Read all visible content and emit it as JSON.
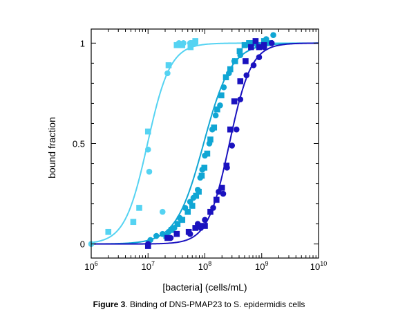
{
  "caption": {
    "label": "Figure 3",
    "text": ". Binding of DNS-PMAP23 to S. epidermidis cells"
  },
  "chart_data": {
    "type": "scatter",
    "xlabel": "[bacteria] (cells/mL)",
    "ylabel": "bound fraction",
    "xscale": "log",
    "xlim": [
      1000000,
      10000000000
    ],
    "ylim": [
      -0.07,
      1.07
    ],
    "xticks": [
      {
        "base": "10",
        "exp": "6"
      },
      {
        "base": "10",
        "exp": "7"
      },
      {
        "base": "10",
        "exp": "8"
      },
      {
        "base": "10",
        "exp": "9"
      },
      {
        "base": "10",
        "exp": "10"
      }
    ],
    "yticks": [
      "0",
      "0.5",
      "1"
    ],
    "ytick_values": [
      0,
      0.5,
      1
    ],
    "grid": false,
    "legend": "none",
    "series": [
      {
        "color": "#55d3f2",
        "fit_midpoint": 9800000,
        "fit_slope": 5.0,
        "circles": [
          [
            1000000,
            0.0
          ],
          [
            10000000,
            0.47
          ],
          [
            10500000,
            0.36
          ],
          [
            18000000,
            0.16
          ],
          [
            22000000,
            0.85
          ],
          [
            35000000,
            1.0
          ],
          [
            42000000,
            1.0
          ],
          [
            55000000,
            1.0
          ],
          [
            68000000,
            1.0
          ]
        ],
        "squares": [
          [
            2000000,
            0.06
          ],
          [
            5500000,
            0.11
          ],
          [
            7000000,
            0.18
          ],
          [
            10000000,
            0.56
          ],
          [
            23000000,
            0.89
          ],
          [
            32000000,
            0.99
          ],
          [
            40000000,
            0.99
          ],
          [
            56000000,
            0.98
          ],
          [
            62000000,
            1.0
          ],
          [
            68000000,
            1.01
          ]
        ]
      },
      {
        "color": "#10a6d4",
        "fit_midpoint": 95000000,
        "fit_slope": 4.1,
        "circles": [
          [
            11000000,
            0.02
          ],
          [
            14000000,
            0.04
          ],
          [
            18000000,
            0.05
          ],
          [
            23000000,
            0.06
          ],
          [
            29000000,
            0.08
          ],
          [
            36000000,
            0.13
          ],
          [
            45000000,
            0.18
          ],
          [
            55000000,
            0.21
          ],
          [
            63000000,
            0.23
          ],
          [
            75000000,
            0.27
          ],
          [
            83000000,
            0.33
          ],
          [
            90000000,
            0.37
          ],
          [
            100000000,
            0.44
          ],
          [
            120000000,
            0.5
          ],
          [
            135000000,
            0.57
          ],
          [
            155000000,
            0.64
          ],
          [
            185000000,
            0.69
          ],
          [
            215000000,
            0.78
          ],
          [
            265000000,
            0.85
          ],
          [
            330000000,
            0.91
          ],
          [
            420000000,
            0.94
          ],
          [
            530000000,
            0.99
          ],
          [
            650000000,
            1.0
          ],
          [
            1200000000,
            1.02
          ],
          [
            1600000000,
            1.04
          ]
        ],
        "squares": [
          [
            21000000,
            0.04
          ],
          [
            26000000,
            0.07
          ],
          [
            33000000,
            0.1
          ],
          [
            40000000,
            0.12
          ],
          [
            50000000,
            0.16
          ],
          [
            60000000,
            0.19
          ],
          [
            70000000,
            0.24
          ],
          [
            78000000,
            0.26
          ],
          [
            88000000,
            0.34
          ],
          [
            98000000,
            0.38
          ],
          [
            110000000,
            0.45
          ],
          [
            125000000,
            0.52
          ],
          [
            145000000,
            0.58
          ],
          [
            165000000,
            0.67
          ],
          [
            195000000,
            0.74
          ],
          [
            235000000,
            0.83
          ],
          [
            280000000,
            0.87
          ],
          [
            340000000,
            0.91
          ],
          [
            410000000,
            0.96
          ],
          [
            500000000,
            0.99
          ],
          [
            600000000,
            1.0
          ],
          [
            750000000,
            1.0
          ],
          [
            850000000,
            0.99
          ],
          [
            1100000000,
            1.01
          ],
          [
            1400000000,
            1.0
          ]
        ]
      },
      {
        "color": "#1a12bf",
        "fit_midpoint": 270000000,
        "fit_slope": 5.2,
        "circles": [
          [
            10000000,
            0.0
          ],
          [
            25000000,
            0.03
          ],
          [
            55000000,
            0.05
          ],
          [
            75000000,
            0.1
          ],
          [
            85000000,
            0.08
          ],
          [
            100000000,
            0.12
          ],
          [
            140000000,
            0.18
          ],
          [
            175000000,
            0.26
          ],
          [
            210000000,
            0.25
          ],
          [
            245000000,
            0.38
          ],
          [
            300000000,
            0.49
          ],
          [
            360000000,
            0.57
          ],
          [
            420000000,
            0.72
          ],
          [
            540000000,
            0.84
          ],
          [
            720000000,
            0.89
          ],
          [
            900000000,
            0.93
          ],
          [
            1100000000,
            0.98
          ],
          [
            1500000000,
            1.0
          ]
        ],
        "squares": [
          [
            10000000,
            -0.01
          ],
          [
            22000000,
            0.03
          ],
          [
            32000000,
            0.05
          ],
          [
            52000000,
            0.06
          ],
          [
            68000000,
            0.08
          ],
          [
            80000000,
            0.09
          ],
          [
            100000000,
            0.09
          ],
          [
            125000000,
            0.16
          ],
          [
            160000000,
            0.22
          ],
          [
            200000000,
            0.28
          ],
          [
            240000000,
            0.39
          ],
          [
            280000000,
            0.57
          ],
          [
            330000000,
            0.71
          ],
          [
            420000000,
            0.81
          ],
          [
            520000000,
            0.91
          ],
          [
            650000000,
            0.98
          ],
          [
            780000000,
            1.01
          ],
          [
            900000000,
            0.98
          ],
          [
            1100000000,
            0.99
          ]
        ]
      }
    ]
  }
}
